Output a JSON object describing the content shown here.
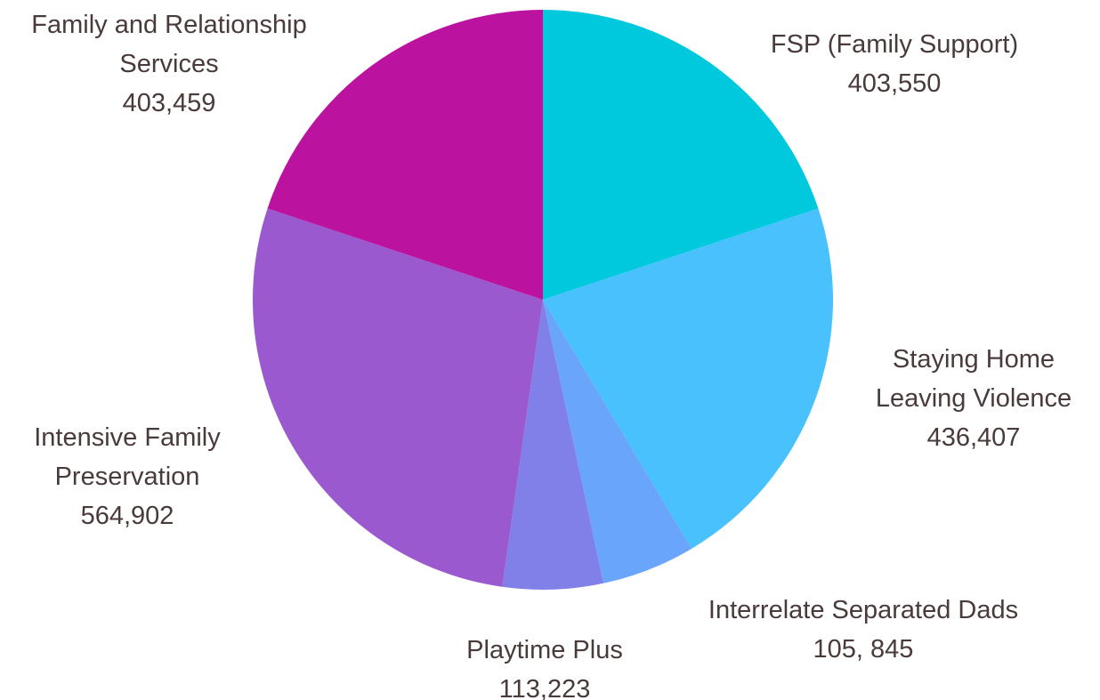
{
  "chart_data": {
    "type": "pie",
    "categories": [
      "FSP (Family Support)",
      "Staying Home Leaving Violence",
      "Interrelate Separated Dads",
      "Playtime Plus",
      "Intensive Family Preservation",
      "Family and Relationship Services"
    ],
    "values": [
      403550,
      436407,
      105845,
      113223,
      564902,
      403459
    ],
    "value_labels": [
      "403,550",
      "436,407",
      "105, 845",
      "113,223",
      "564,902",
      "403,459"
    ],
    "colors": [
      "#00c9dd",
      "#48c1fd",
      "#68a5fb",
      "#8080e8",
      "#9b59cf",
      "#bb12a0"
    ]
  }
}
